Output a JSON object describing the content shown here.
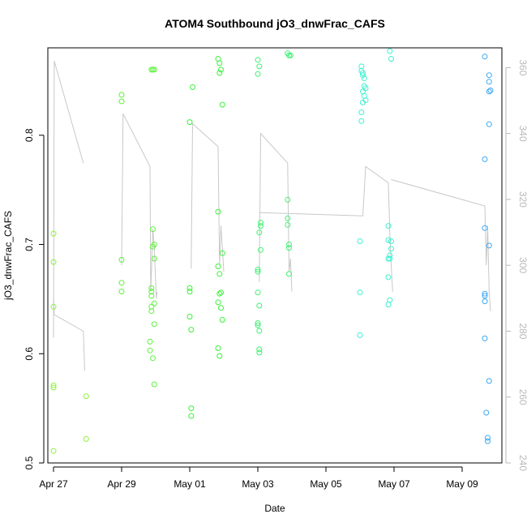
{
  "chart_data": {
    "type": "scatter",
    "title": "ATOM4 Southbound jO3_dnwFrac_CAFS",
    "xlabel": "Date",
    "ylabel": "jO3_dnwFrac_CAFS",
    "x_range": [
      "2018-04-26T20:00",
      "2018-05-10T04:00"
    ],
    "ylim": [
      0.5,
      0.88
    ],
    "y_ticks": [
      0.5,
      0.6,
      0.7,
      0.8
    ],
    "x_ticks": [
      {
        "date": "2018-04-27",
        "label": "Apr 27"
      },
      {
        "date": "2018-04-29",
        "label": "Apr 29"
      },
      {
        "date": "2018-05-01",
        "label": "May 01"
      },
      {
        "date": "2018-05-03",
        "label": "May 03"
      },
      {
        "date": "2018-05-05",
        "label": "May 05"
      },
      {
        "date": "2018-05-07",
        "label": "May 07"
      },
      {
        "date": "2018-05-09",
        "label": "May 09"
      }
    ],
    "secondary_axis": {
      "ylim": [
        240,
        366
      ],
      "ticks": [
        240,
        260,
        280,
        300,
        320,
        340,
        360
      ],
      "color": "#b8b8b8",
      "line_color": "#c8c8c8",
      "line_segments": [
        [
          [
            "2018-04-27T00:00",
            278
          ],
          [
            "2018-04-27T00:30",
            362
          ],
          [
            "2018-04-27T21:00",
            331
          ]
        ],
        [
          [
            "2018-04-29T00:00",
            300
          ],
          [
            "2018-04-29T01:00",
            346
          ],
          [
            "2018-04-29T20:00",
            330
          ],
          [
            "2018-04-29T20:30",
            292
          ],
          [
            "2018-04-29T21:00",
            298
          ],
          [
            "2018-04-29T22:00",
            311
          ],
          [
            "2018-04-29T23:00",
            305
          ],
          [
            "2018-04-30T00:00",
            295
          ],
          [
            "2018-04-30T00:30",
            290
          ],
          [
            "2018-04-30T01:00",
            292
          ]
        ],
        [
          [
            "2018-05-01T01:00",
            299
          ],
          [
            "2018-05-01T02:00",
            343
          ],
          [
            "2018-05-01T20:00",
            336
          ],
          [
            "2018-05-01T21:00",
            300
          ],
          [
            "2018-05-01T22:00",
            312
          ],
          [
            "2018-05-01T23:00",
            305
          ],
          [
            "2018-05-02T00:00",
            298
          ]
        ],
        [
          [
            "2018-05-03T01:00",
            295
          ],
          [
            "2018-05-03T02:00",
            340
          ],
          [
            "2018-05-03T21:00",
            331
          ],
          [
            "2018-05-03T22:00",
            298
          ],
          [
            "2018-05-03T23:00",
            302
          ],
          [
            "2018-05-04T00:00",
            292
          ]
        ],
        [
          [
            "2018-05-03T01:00",
            316
          ],
          [
            "2018-05-06T02:00",
            315
          ],
          [
            "2018-05-06T04:00",
            330
          ],
          [
            "2018-05-06T20:00",
            325
          ],
          [
            "2018-05-06T21:00",
            310
          ],
          [
            "2018-05-06T22:00",
            300
          ],
          [
            "2018-05-06T23:00",
            292
          ]
        ],
        [
          [
            "2018-05-06T22:00",
            326
          ],
          [
            "2018-05-09T16:00",
            318
          ],
          [
            "2018-05-09T17:00",
            300
          ],
          [
            "2018-05-09T18:00",
            312
          ],
          [
            "2018-05-09T19:00",
            292
          ],
          [
            "2018-05-09T20:00",
            286
          ]
        ],
        [
          [
            "2018-04-27T00:00",
            290
          ],
          [
            "2018-04-27T00:30",
            285
          ],
          [
            "2018-04-27T21:00",
            280
          ],
          [
            "2018-04-27T22:00",
            268
          ]
        ]
      ]
    },
    "series": [
      {
        "color": "#8cf23c",
        "points": [
          [
            "2018-04-27T00:00",
            0.511
          ],
          [
            "2018-04-27T00:00",
            0.569
          ],
          [
            "2018-04-27T00:00",
            0.571
          ],
          [
            "2018-04-27T00:00",
            0.643
          ],
          [
            "2018-04-27T00:00",
            0.684
          ],
          [
            "2018-04-27T00:00",
            0.71
          ],
          [
            "2018-04-27T23:00",
            0.561
          ],
          [
            "2018-04-27T23:00",
            0.522
          ]
        ]
      },
      {
        "color": "#5cf23c",
        "points": [
          [
            "2018-04-29T00:00",
            0.837
          ],
          [
            "2018-04-29T00:00",
            0.831
          ],
          [
            "2018-04-29T00:00",
            0.686
          ],
          [
            "2018-04-29T00:00",
            0.665
          ],
          [
            "2018-04-29T00:00",
            0.657
          ],
          [
            "2018-04-29T20:00",
            0.603
          ],
          [
            "2018-04-29T20:00",
            0.611
          ],
          [
            "2018-04-29T21:00",
            0.639
          ],
          [
            "2018-04-29T21:00",
            0.643
          ],
          [
            "2018-04-29T21:00",
            0.653
          ],
          [
            "2018-04-29T21:00",
            0.657
          ],
          [
            "2018-04-29T21:00",
            0.66
          ],
          [
            "2018-04-29T22:00",
            0.596
          ],
          [
            "2018-04-29T22:00",
            0.698
          ],
          [
            "2018-04-29T22:00",
            0.714
          ],
          [
            "2018-04-29T23:00",
            0.7
          ],
          [
            "2018-04-29T23:00",
            0.687
          ],
          [
            "2018-04-29T23:00",
            0.646
          ],
          [
            "2018-04-29T23:00",
            0.627
          ],
          [
            "2018-04-29T23:00",
            0.572
          ],
          [
            "2018-04-29T21:00",
            0.86
          ],
          [
            "2018-04-29T22:00",
            0.86
          ],
          [
            "2018-04-29T23:00",
            0.86
          ]
        ]
      },
      {
        "color": "#3cf23c",
        "points": [
          [
            "2018-05-01T00:00",
            0.812
          ],
          [
            "2018-05-01T02:00",
            0.844
          ],
          [
            "2018-05-01T00:00",
            0.66
          ],
          [
            "2018-05-01T00:00",
            0.657
          ],
          [
            "2018-05-01T00:00",
            0.634
          ],
          [
            "2018-05-01T01:00",
            0.622
          ],
          [
            "2018-05-01T01:00",
            0.55
          ],
          [
            "2018-05-01T01:00",
            0.543
          ],
          [
            "2018-05-01T20:00",
            0.87
          ],
          [
            "2018-05-01T21:00",
            0.866
          ],
          [
            "2018-05-01T22:00",
            0.86
          ],
          [
            "2018-05-01T21:00",
            0.857
          ],
          [
            "2018-05-01T23:00",
            0.828
          ],
          [
            "2018-05-01T20:00",
            0.73
          ],
          [
            "2018-05-01T20:00",
            0.68
          ],
          [
            "2018-05-01T21:00",
            0.673
          ],
          [
            "2018-05-01T21:00",
            0.655
          ],
          [
            "2018-05-01T22:00",
            0.656
          ],
          [
            "2018-05-01T20:00",
            0.647
          ],
          [
            "2018-05-01T22:00",
            0.642
          ],
          [
            "2018-05-01T23:00",
            0.631
          ],
          [
            "2018-05-01T20:00",
            0.605
          ],
          [
            "2018-05-01T21:00",
            0.598
          ],
          [
            "2018-05-01T23:00",
            0.692
          ]
        ]
      },
      {
        "color": "#3cf270",
        "points": [
          [
            "2018-05-03T00:00",
            0.869
          ],
          [
            "2018-05-03T01:00",
            0.863
          ],
          [
            "2018-05-03T00:00",
            0.856
          ],
          [
            "2018-05-03T02:00",
            0.72
          ],
          [
            "2018-05-03T02:00",
            0.717
          ],
          [
            "2018-05-03T01:00",
            0.711
          ],
          [
            "2018-05-03T02:00",
            0.695
          ],
          [
            "2018-05-03T00:00",
            0.677
          ],
          [
            "2018-05-03T00:00",
            0.675
          ],
          [
            "2018-05-03T00:00",
            0.656
          ],
          [
            "2018-05-03T01:00",
            0.644
          ],
          [
            "2018-05-03T00:00",
            0.628
          ],
          [
            "2018-05-03T00:00",
            0.626
          ],
          [
            "2018-05-03T01:00",
            0.621
          ],
          [
            "2018-05-03T01:00",
            0.604
          ],
          [
            "2018-05-03T01:00",
            0.601
          ],
          [
            "2018-05-03T21:00",
            0.875
          ],
          [
            "2018-05-03T22:00",
            0.873
          ],
          [
            "2018-05-03T23:00",
            0.873
          ],
          [
            "2018-05-03T21:00",
            0.741
          ],
          [
            "2018-05-03T21:00",
            0.724
          ],
          [
            "2018-05-03T21:00",
            0.718
          ],
          [
            "2018-05-03T22:00",
            0.7
          ],
          [
            "2018-05-03T22:00",
            0.697
          ],
          [
            "2018-05-03T22:00",
            0.673
          ]
        ]
      },
      {
        "color": "#3cf2d0",
        "points": [
          [
            "2018-05-06T01:00",
            0.863
          ],
          [
            "2018-05-06T01:00",
            0.859
          ],
          [
            "2018-05-06T02:00",
            0.857
          ],
          [
            "2018-05-06T02:00",
            0.855
          ],
          [
            "2018-05-06T03:00",
            0.852
          ],
          [
            "2018-05-06T03:00",
            0.845
          ],
          [
            "2018-05-06T02:00",
            0.84
          ],
          [
            "2018-05-06T03:00",
            0.836
          ],
          [
            "2018-05-06T02:00",
            0.83
          ],
          [
            "2018-05-06T01:00",
            0.821
          ],
          [
            "2018-05-06T01:00",
            0.813
          ],
          [
            "2018-05-06T04:00",
            0.832
          ],
          [
            "2018-05-06T04:00",
            0.843
          ],
          [
            "2018-05-06T00:00",
            0.703
          ],
          [
            "2018-05-06T00:00",
            0.656
          ],
          [
            "2018-05-06T00:00",
            0.617
          ],
          [
            "2018-05-06T21:00",
            0.877
          ],
          [
            "2018-05-06T22:00",
            0.87
          ],
          [
            "2018-05-06T20:00",
            0.717
          ],
          [
            "2018-05-06T20:00",
            0.704
          ],
          [
            "2018-05-06T22:00",
            0.703
          ],
          [
            "2018-05-06T22:00",
            0.696
          ],
          [
            "2018-05-06T21:00",
            0.69
          ],
          [
            "2018-05-06T20:00",
            0.687
          ],
          [
            "2018-05-06T21:00",
            0.687
          ],
          [
            "2018-05-06T20:00",
            0.67
          ],
          [
            "2018-05-06T21:00",
            0.649
          ],
          [
            "2018-05-06T20:00",
            0.645
          ]
        ]
      },
      {
        "color": "#3ca8f2",
        "points": [
          [
            "2018-05-09T16:00",
            0.872
          ],
          [
            "2018-05-09T19:00",
            0.855
          ],
          [
            "2018-05-09T19:00",
            0.849
          ],
          [
            "2018-05-09T20:00",
            0.841
          ],
          [
            "2018-05-09T19:00",
            0.84
          ],
          [
            "2018-05-09T19:00",
            0.81
          ],
          [
            "2018-05-09T16:00",
            0.778
          ],
          [
            "2018-05-09T16:00",
            0.715
          ],
          [
            "2018-05-09T19:00",
            0.699
          ],
          [
            "2018-05-09T16:00",
            0.655
          ],
          [
            "2018-05-09T16:00",
            0.653
          ],
          [
            "2018-05-09T16:00",
            0.648
          ],
          [
            "2018-05-09T16:00",
            0.614
          ],
          [
            "2018-05-09T19:00",
            0.575
          ],
          [
            "2018-05-09T17:00",
            0.546
          ],
          [
            "2018-05-09T18:00",
            0.523
          ],
          [
            "2018-05-09T18:00",
            0.52
          ]
        ]
      }
    ]
  }
}
